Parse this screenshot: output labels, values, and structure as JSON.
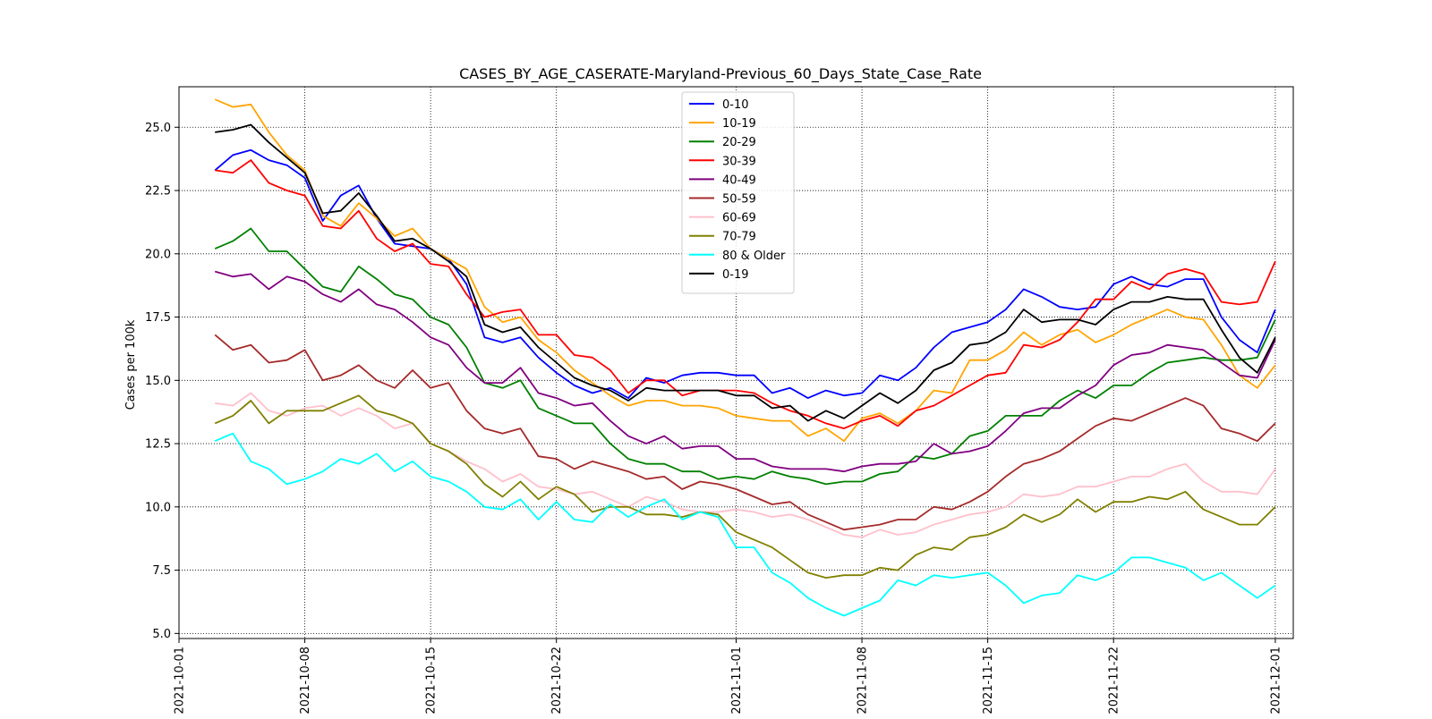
{
  "chart_data": {
    "type": "line",
    "title": "CASES_BY_AGE_CASERATE-Maryland-Previous_60_Days_State_Case_Rate",
    "xlabel": "",
    "ylabel": "Cases per 100k",
    "x_start": "2021-10-03",
    "xlim": [
      "2021-10-01",
      "2021-12-02"
    ],
    "ylim": [
      4.8,
      26.6
    ],
    "x_ticks": [
      "2021-10-01",
      "2021-10-08",
      "2021-10-15",
      "2021-10-22",
      "2021-11-01",
      "2021-11-08",
      "2021-11-15",
      "2021-11-22",
      "2021-12-01"
    ],
    "y_ticks": [
      "5.0",
      "7.5",
      "10.0",
      "12.5",
      "15.0",
      "17.5",
      "20.0",
      "22.5",
      "25.0"
    ],
    "grid": true,
    "legend_position": "top-center",
    "series": [
      {
        "name": "0-10",
        "color": "#0000ff",
        "values": [
          23.3,
          23.9,
          24.1,
          23.7,
          23.5,
          23.0,
          21.3,
          22.3,
          22.7,
          21.4,
          20.4,
          20.3,
          20.2,
          19.8,
          18.8,
          16.7,
          16.5,
          16.7,
          15.9,
          15.3,
          14.8,
          14.5,
          14.7,
          14.3,
          15.1,
          14.9,
          15.2,
          15.3,
          15.3,
          15.2,
          15.2,
          14.5,
          14.7,
          14.3,
          14.6,
          14.4,
          14.5,
          15.2,
          15.0,
          15.5,
          16.3,
          16.9,
          17.1,
          17.3,
          17.8,
          18.6,
          18.3,
          17.9,
          17.8,
          17.9,
          18.8,
          19.1,
          18.8,
          18.7,
          19.0,
          19.0,
          17.5,
          16.6,
          16.1,
          17.8
        ]
      },
      {
        "name": "10-19",
        "color": "#ffa500",
        "values": [
          26.1,
          25.8,
          25.9,
          24.8,
          23.9,
          23.3,
          21.5,
          21.1,
          22.0,
          21.4,
          20.7,
          21.0,
          20.2,
          19.8,
          19.4,
          17.9,
          17.3,
          17.5,
          16.6,
          16.1,
          15.4,
          14.9,
          14.4,
          14.0,
          14.2,
          14.2,
          14.0,
          14.0,
          13.9,
          13.6,
          13.5,
          13.4,
          13.4,
          12.8,
          13.1,
          12.6,
          13.5,
          13.7,
          13.3,
          13.8,
          14.6,
          14.5,
          15.8,
          15.8,
          16.2,
          16.9,
          16.4,
          16.8,
          17.0,
          16.5,
          16.8,
          17.2,
          17.5,
          17.8,
          17.5,
          17.4,
          16.4,
          15.2,
          14.7,
          15.6
        ]
      },
      {
        "name": "20-29",
        "color": "#008000",
        "values": [
          20.2,
          20.5,
          21.0,
          20.1,
          20.1,
          19.4,
          18.7,
          18.5,
          19.5,
          19.0,
          18.4,
          18.2,
          17.5,
          17.2,
          16.3,
          14.9,
          14.7,
          15.0,
          13.9,
          13.6,
          13.3,
          13.3,
          12.5,
          11.9,
          11.7,
          11.7,
          11.4,
          11.4,
          11.1,
          11.2,
          11.1,
          11.4,
          11.2,
          11.1,
          10.9,
          11.0,
          11.0,
          11.3,
          11.4,
          12.0,
          11.9,
          12.1,
          12.8,
          13.0,
          13.6,
          13.6,
          13.6,
          14.2,
          14.6,
          14.3,
          14.8,
          14.8,
          15.3,
          15.7,
          15.8,
          15.9,
          15.8,
          15.8,
          15.9,
          17.4
        ]
      },
      {
        "name": "30-39",
        "color": "#ff0000",
        "values": [
          23.3,
          23.2,
          23.7,
          22.8,
          22.5,
          22.3,
          21.1,
          21.0,
          21.7,
          20.6,
          20.1,
          20.4,
          19.6,
          19.5,
          18.4,
          17.5,
          17.7,
          17.8,
          16.8,
          16.8,
          16.0,
          15.9,
          15.4,
          14.5,
          15.0,
          15.0,
          14.4,
          14.6,
          14.6,
          14.6,
          14.5,
          14.1,
          13.8,
          13.6,
          13.3,
          13.1,
          13.4,
          13.6,
          13.2,
          13.8,
          14.0,
          14.4,
          14.8,
          15.2,
          15.3,
          16.4,
          16.3,
          16.6,
          17.3,
          18.2,
          18.2,
          18.9,
          18.6,
          19.2,
          19.4,
          19.2,
          18.1,
          18.0,
          18.1,
          19.7
        ]
      },
      {
        "name": "40-49",
        "color": "#800080",
        "values": [
          19.3,
          19.1,
          19.2,
          18.6,
          19.1,
          18.9,
          18.4,
          18.1,
          18.6,
          18.0,
          17.8,
          17.3,
          16.7,
          16.4,
          15.5,
          14.9,
          14.9,
          15.5,
          14.5,
          14.3,
          14.0,
          14.1,
          13.4,
          12.8,
          12.5,
          12.8,
          12.3,
          12.4,
          12.4,
          11.9,
          11.9,
          11.6,
          11.5,
          11.5,
          11.5,
          11.4,
          11.6,
          11.7,
          11.7,
          11.8,
          12.5,
          12.1,
          12.2,
          12.4,
          13.0,
          13.7,
          13.9,
          13.9,
          14.4,
          14.8,
          15.6,
          16.0,
          16.1,
          16.4,
          16.3,
          16.2,
          15.7,
          15.2,
          15.1,
          16.6
        ]
      },
      {
        "name": "50-59",
        "color": "#a52a2a",
        "values": [
          16.8,
          16.2,
          16.4,
          15.7,
          15.8,
          16.2,
          15.0,
          15.2,
          15.6,
          15.0,
          14.7,
          15.4,
          14.7,
          14.9,
          13.8,
          13.1,
          12.9,
          13.1,
          12.0,
          11.9,
          11.5,
          11.8,
          11.6,
          11.4,
          11.1,
          11.2,
          10.7,
          11.0,
          10.9,
          10.7,
          10.4,
          10.1,
          10.2,
          9.7,
          9.4,
          9.1,
          9.2,
          9.3,
          9.5,
          9.5,
          10.0,
          9.9,
          10.2,
          10.6,
          11.2,
          11.7,
          11.9,
          12.2,
          12.7,
          13.2,
          13.5,
          13.4,
          13.7,
          14.0,
          14.3,
          14.0,
          13.1,
          12.9,
          12.6,
          13.3
        ]
      },
      {
        "name": "60-69",
        "color": "#ffc0cb",
        "values": [
          14.1,
          14.0,
          14.5,
          13.8,
          13.6,
          13.9,
          14.0,
          13.6,
          13.9,
          13.6,
          13.1,
          13.3,
          12.5,
          12.2,
          11.8,
          11.5,
          11.0,
          11.3,
          10.8,
          10.7,
          10.5,
          10.6,
          10.3,
          10.0,
          10.4,
          10.2,
          9.9,
          9.8,
          9.8,
          9.9,
          9.8,
          9.6,
          9.7,
          9.5,
          9.2,
          8.9,
          8.8,
          9.1,
          8.9,
          9.0,
          9.3,
          9.5,
          9.7,
          9.8,
          10.0,
          10.5,
          10.4,
          10.5,
          10.8,
          10.8,
          11.0,
          11.2,
          11.2,
          11.5,
          11.7,
          11.0,
          10.6,
          10.6,
          10.5,
          11.5
        ]
      },
      {
        "name": "70-79",
        "color": "#808000",
        "values": [
          13.3,
          13.6,
          14.2,
          13.3,
          13.8,
          13.8,
          13.8,
          14.1,
          14.4,
          13.8,
          13.6,
          13.3,
          12.5,
          12.2,
          11.7,
          10.9,
          10.4,
          11.0,
          10.3,
          10.8,
          10.5,
          9.8,
          10.0,
          10.0,
          9.7,
          9.7,
          9.6,
          9.8,
          9.7,
          9.0,
          8.7,
          8.4,
          7.9,
          7.4,
          7.2,
          7.3,
          7.3,
          7.6,
          7.5,
          8.1,
          8.4,
          8.3,
          8.8,
          8.9,
          9.2,
          9.7,
          9.4,
          9.7,
          10.3,
          9.8,
          10.2,
          10.2,
          10.4,
          10.3,
          10.6,
          9.9,
          9.6,
          9.3,
          9.3,
          10.0
        ]
      },
      {
        "name": "80 & Older",
        "color": "#00ffff",
        "values": [
          12.6,
          12.9,
          11.8,
          11.5,
          10.9,
          11.1,
          11.4,
          11.9,
          11.7,
          12.1,
          11.4,
          11.8,
          11.2,
          11.0,
          10.6,
          10.0,
          9.9,
          10.3,
          9.5,
          10.2,
          9.5,
          9.4,
          10.1,
          9.6,
          10.0,
          10.3,
          9.5,
          9.8,
          9.6,
          8.4,
          8.4,
          7.4,
          7.0,
          6.4,
          6.0,
          5.7,
          6.0,
          6.3,
          7.1,
          6.9,
          7.3,
          7.2,
          7.3,
          7.4,
          6.9,
          6.2,
          6.5,
          6.6,
          7.3,
          7.1,
          7.4,
          8.0,
          8.0,
          7.8,
          7.6,
          7.1,
          7.4,
          6.9,
          6.4,
          6.9
        ]
      },
      {
        "name": "0-19",
        "color": "#000000",
        "values": [
          24.8,
          24.9,
          25.1,
          24.4,
          23.8,
          23.2,
          21.6,
          21.7,
          22.4,
          21.5,
          20.5,
          20.6,
          20.2,
          19.7,
          19.1,
          17.2,
          16.9,
          17.1,
          16.3,
          15.7,
          15.1,
          14.8,
          14.6,
          14.2,
          14.7,
          14.6,
          14.6,
          14.6,
          14.6,
          14.4,
          14.4,
          13.9,
          14.0,
          13.4,
          13.8,
          13.5,
          14.0,
          14.5,
          14.1,
          14.6,
          15.4,
          15.7,
          16.4,
          16.5,
          16.9,
          17.8,
          17.3,
          17.4,
          17.4,
          17.2,
          17.8,
          18.1,
          18.1,
          18.3,
          18.2,
          18.2,
          17.0,
          15.9,
          15.3,
          16.7
        ]
      }
    ]
  }
}
